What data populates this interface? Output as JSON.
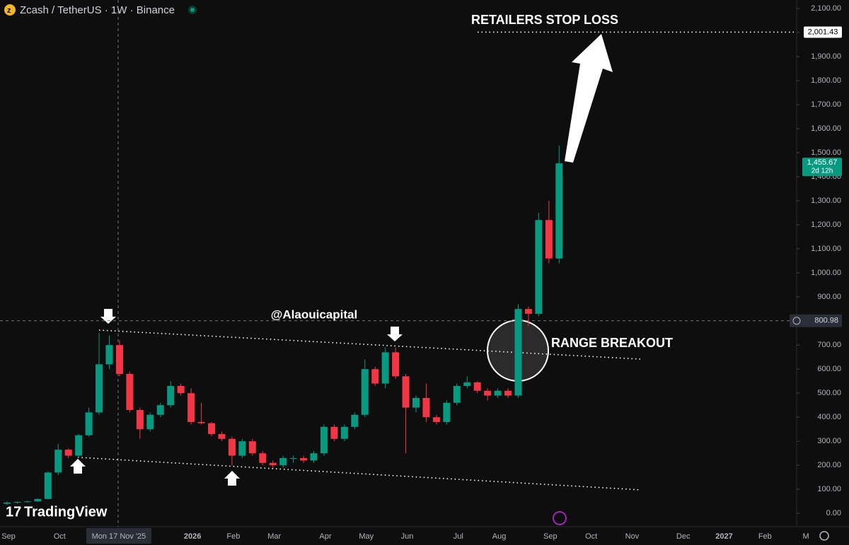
{
  "chart_data": {
    "type": "candlestick",
    "title": "Zcash / TetherUS · 1W · Binance",
    "logo": "TradingView",
    "categories": [
      "Sep",
      null,
      null,
      null,
      null,
      "Oct",
      null,
      null,
      null,
      null,
      null,
      "Mon 17 Nov '25",
      null,
      null,
      null,
      null,
      null,
      null,
      "2026",
      null,
      null,
      null,
      "Feb",
      null,
      null,
      null,
      "Mar",
      null,
      null,
      null,
      null,
      "Apr",
      null,
      null,
      null,
      "May",
      null,
      null,
      null,
      "Jun",
      null,
      null,
      null,
      null,
      "Jul",
      null,
      null,
      null,
      "Aug",
      null,
      null,
      null,
      null,
      "Sep",
      null,
      null,
      null,
      "Oct",
      null,
      null,
      null,
      "Nov",
      null,
      null,
      null,
      null,
      "Dec",
      null,
      null,
      null,
      "2027",
      null,
      null,
      null,
      "Feb",
      null,
      null,
      null,
      "M"
    ],
    "open": [
      40,
      45,
      48,
      50,
      60,
      170,
      265,
      240,
      325,
      420,
      620,
      700,
      580,
      430,
      350,
      410,
      450,
      530,
      500,
      380,
      375,
      330,
      310,
      240,
      300,
      250,
      210,
      200,
      230,
      230,
      220,
      250,
      360,
      310,
      360,
      410,
      600,
      540,
      670,
      570,
      440,
      480,
      400,
      380,
      460,
      530,
      545,
      510,
      490,
      510,
      490,
      850,
      830,
      1220,
      1060,
      null,
      null,
      null,
      null,
      null,
      null,
      null,
      null,
      null,
      null,
      null,
      null,
      null,
      null,
      null,
      null,
      null,
      null,
      null,
      null,
      null,
      null,
      null,
      null
    ],
    "high": [
      50,
      50,
      52,
      62,
      175,
      290,
      270,
      330,
      440,
      750,
      740,
      720,
      590,
      440,
      420,
      460,
      550,
      540,
      520,
      460,
      380,
      340,
      320,
      310,
      310,
      260,
      220,
      240,
      240,
      240,
      260,
      370,
      370,
      370,
      420,
      640,
      610,
      690,
      690,
      580,
      490,
      540,
      410,
      470,
      540,
      570,
      550,
      520,
      520,
      520,
      870,
      860,
      1250,
      1300,
      1530,
      null,
      null,
      null,
      null,
      null,
      null,
      null,
      null,
      null,
      null,
      null,
      null,
      null,
      null,
      null,
      null,
      null,
      null,
      null,
      null,
      null,
      null,
      null,
      null
    ],
    "low": [
      35,
      40,
      44,
      48,
      58,
      160,
      230,
      230,
      320,
      410,
      600,
      570,
      420,
      310,
      340,
      400,
      440,
      490,
      370,
      370,
      320,
      300,
      200,
      230,
      240,
      200,
      190,
      190,
      210,
      210,
      210,
      240,
      300,
      300,
      350,
      400,
      530,
      520,
      560,
      250,
      420,
      380,
      370,
      370,
      450,
      520,
      500,
      470,
      480,
      480,
      480,
      780,
      820,
      1040,
      1040,
      null,
      null,
      null,
      null,
      null,
      null,
      null,
      null,
      null,
      null,
      null,
      null,
      null,
      null,
      null,
      null,
      null,
      null,
      null,
      null,
      null,
      null,
      null,
      null
    ],
    "close": [
      45,
      48,
      50,
      60,
      170,
      265,
      240,
      325,
      420,
      620,
      700,
      580,
      430,
      350,
      410,
      450,
      530,
      500,
      380,
      375,
      330,
      310,
      240,
      300,
      250,
      210,
      200,
      230,
      230,
      220,
      250,
      360,
      310,
      360,
      410,
      600,
      540,
      670,
      570,
      440,
      480,
      400,
      380,
      460,
      530,
      545,
      510,
      490,
      510,
      490,
      850,
      830,
      1220,
      1060,
      1455.67,
      null,
      null,
      null,
      null,
      null,
      null,
      null,
      null,
      null,
      null,
      null,
      null,
      null,
      null,
      null,
      null,
      null,
      null,
      null,
      null,
      null,
      null,
      null,
      null
    ],
    "up_color": "#089981",
    "down_color": "#f23645",
    "ylim": [
      -55,
      2135
    ],
    "yticks": [
      {
        "value": 0,
        "label": "0.00"
      },
      {
        "value": 100,
        "label": "100.00"
      },
      {
        "value": 200,
        "label": "200.00"
      },
      {
        "value": 300,
        "label": "300.00"
      },
      {
        "value": 400,
        "label": "400.00"
      },
      {
        "value": 500,
        "label": "500.00"
      },
      {
        "value": 600,
        "label": "600.00"
      },
      {
        "value": 700,
        "label": "700.00"
      },
      {
        "value": 800,
        "label": "800.00"
      },
      {
        "value": 900,
        "label": "900.00"
      },
      {
        "value": 1000,
        "label": "1,000.00"
      },
      {
        "value": 1100,
        "label": "1,100.00"
      },
      {
        "value": 1200,
        "label": "1,200.00"
      },
      {
        "value": 1300,
        "label": "1,300.00"
      },
      {
        "value": 1400,
        "label": "1,400.00"
      },
      {
        "value": 1500,
        "label": "1,500.00"
      },
      {
        "value": 1600,
        "label": "1,600.00"
      },
      {
        "value": 1700,
        "label": "1,700.00"
      },
      {
        "value": 1800,
        "label": "1,800.00"
      },
      {
        "value": 1900,
        "label": "1,900.00"
      },
      {
        "value": 2000,
        "label": "2,000.00"
      },
      {
        "value": 2100,
        "label": "2,100.00"
      }
    ],
    "grid": false,
    "price_labels": {
      "stop": {
        "value": 2001.43,
        "label": "2,001.43"
      },
      "last": {
        "value": 1455.67,
        "label": "1,455.67",
        "countdown": "2d 12h"
      },
      "crosshair": {
        "value": 800.98,
        "label": "800.98"
      }
    },
    "annotations": {
      "stop_loss": "RETAILERS STOP LOSS",
      "breakout": "RANGE BREAKOUT",
      "watermark": "@Alaouicapital"
    }
  }
}
